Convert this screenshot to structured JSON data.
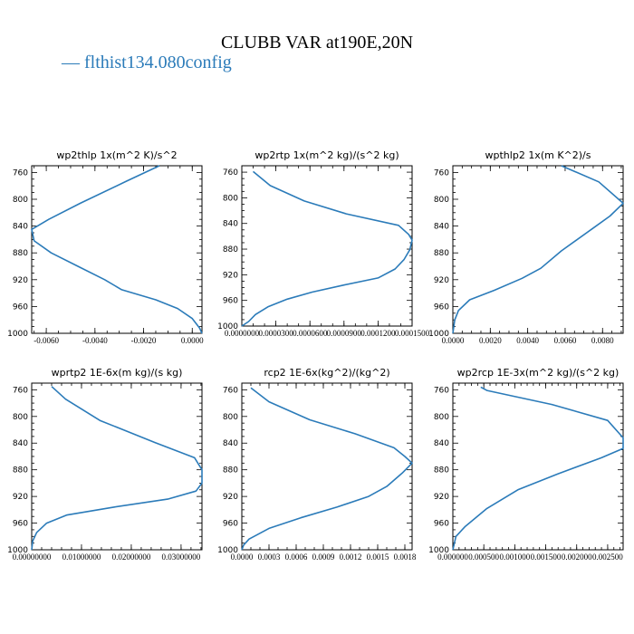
{
  "figure": {
    "title": "CLUBB VAR at190E,20N",
    "legend_label": "— flthist134.080config",
    "line_color": "#2b7bb9"
  },
  "chart_data": [
    {
      "type": "line",
      "title": "wp2thlp  1x(m^2 K)/s^2",
      "ylim": [
        1000,
        750
      ],
      "y_ticks": [
        "760",
        "800",
        "840",
        "880",
        "920",
        "960",
        "1000"
      ],
      "xlim": [
        -0.0066,
        0.0004
      ],
      "x_ticks": [
        {
          "v": -0.006,
          "label": "-0.0060"
        },
        {
          "v": -0.004,
          "label": "-0.0040"
        },
        {
          "v": -0.002,
          "label": "-0.0020"
        },
        {
          "v": 0.0,
          "label": "0.0000"
        }
      ],
      "x_minor_step": 0.0005,
      "series": [
        {
          "values": [
            [
              -0.00135,
              750
            ],
            [
              -0.0027,
              773
            ],
            [
              -0.0046,
              806
            ],
            [
              -0.0059,
              830
            ],
            [
              -0.0066,
              845
            ],
            [
              -0.0065,
              862
            ],
            [
              -0.0058,
              880
            ],
            [
              -0.0047,
              900
            ],
            [
              -0.0036,
              920
            ],
            [
              -0.0029,
              935
            ],
            [
              -0.0015,
              950
            ],
            [
              -0.0006,
              963
            ],
            [
              0.0,
              978
            ],
            [
              0.0003,
              992
            ],
            [
              0.0004,
              1000
            ]
          ]
        }
      ]
    },
    {
      "type": "line",
      "title": "wp2rtp  1x(m^2 kg)/(s^2 kg)",
      "ylim": [
        1000,
        750
      ],
      "y_ticks": [
        "760",
        "800",
        "840",
        "880",
        "920",
        "960",
        "1000"
      ],
      "xlim": [
        0.0,
        0.00015
      ],
      "x_ticks": [
        {
          "v": 0.0,
          "label": "0.0000000"
        },
        {
          "v": 3e-05,
          "label": "0.0000300"
        },
        {
          "v": 6e-05,
          "label": "0.0000600"
        },
        {
          "v": 9e-05,
          "label": "0.0000900"
        },
        {
          "v": 0.00012,
          "label": "0.0001200"
        },
        {
          "v": 0.00015,
          "label": "0.0001500"
        }
      ],
      "x_minor_step": 1e-05,
      "series": [
        {
          "values": [
            [
              1e-05,
              759
            ],
            [
              2.5e-05,
              781
            ],
            [
              5.5e-05,
              805
            ],
            [
              9.2e-05,
              825
            ],
            [
              0.000138,
              843
            ],
            [
              0.000147,
              857
            ],
            [
              0.00015,
              866
            ],
            [
              0.000148,
              881
            ],
            [
              0.000143,
              896
            ],
            [
              0.000135,
              911
            ],
            [
              0.00012,
              925
            ],
            [
              9e-05,
              936
            ],
            [
              6.2e-05,
              947
            ],
            [
              4e-05,
              958
            ],
            [
              2.3e-05,
              970
            ],
            [
              1.2e-05,
              982
            ],
            [
              6e-06,
              993
            ],
            [
              0.0,
              1000
            ]
          ]
        }
      ]
    },
    {
      "type": "line",
      "title": "wpthlp2  1x(m K^2)/s",
      "ylim": [
        1000,
        750
      ],
      "y_ticks": [
        "760",
        "800",
        "840",
        "880",
        "920",
        "960",
        "1000"
      ],
      "xlim": [
        0.0,
        0.0091
      ],
      "x_ticks": [
        {
          "v": 0.0,
          "label": "0.0000"
        },
        {
          "v": 0.002,
          "label": "0.0020"
        },
        {
          "v": 0.004,
          "label": "0.0040"
        },
        {
          "v": 0.006,
          "label": "0.0060"
        },
        {
          "v": 0.008,
          "label": "0.0080"
        }
      ],
      "x_minor_step": 0.0005,
      "series": [
        {
          "values": [
            [
              0.0058,
              750
            ],
            [
              0.0078,
              774
            ],
            [
              0.0091,
              806
            ],
            [
              0.0084,
              825
            ],
            [
              0.0074,
              845
            ],
            [
              0.0058,
              877
            ],
            [
              0.0047,
              903
            ],
            [
              0.0037,
              918
            ],
            [
              0.0022,
              936
            ],
            [
              0.0009,
              950
            ],
            [
              0.0003,
              966
            ],
            [
              0.0001,
              980
            ],
            [
              0.0,
              1000
            ]
          ]
        }
      ]
    },
    {
      "type": "line",
      "title": "wprtp2  1E-6x(m kg)/(s kg)",
      "ylim": [
        1000,
        750
      ],
      "y_ticks": [
        "760",
        "800",
        "840",
        "880",
        "920",
        "960",
        "1000"
      ],
      "xlim": [
        0.0,
        0.0342
      ],
      "x_ticks": [
        {
          "v": 0.0,
          "label": "0.00000000"
        },
        {
          "v": 0.01,
          "label": "0.01000000"
        },
        {
          "v": 0.02,
          "label": "0.02000000"
        },
        {
          "v": 0.03,
          "label": "0.03000000"
        }
      ],
      "x_minor_step": 0.002,
      "series": [
        {
          "values": [
            [
              0.004,
              755
            ],
            [
              0.0068,
              774
            ],
            [
              0.0137,
              806
            ],
            [
              0.0247,
              839
            ],
            [
              0.0327,
              862
            ],
            [
              0.0342,
              880
            ],
            [
              0.0342,
              900
            ],
            [
              0.033,
              912
            ],
            [
              0.0273,
              924
            ],
            [
              0.0165,
              936
            ],
            [
              0.007,
              948
            ],
            [
              0.003,
              960
            ],
            [
              0.001,
              974
            ],
            [
              0.0002,
              987
            ],
            [
              0.0,
              1000
            ]
          ]
        }
      ]
    },
    {
      "type": "line",
      "title": "rcp2  1E-6x(kg^2)/(kg^2)",
      "ylim": [
        1000,
        750
      ],
      "y_ticks": [
        "760",
        "800",
        "840",
        "880",
        "920",
        "960",
        "1000"
      ],
      "xlim": [
        0.0,
        0.00188
      ],
      "x_ticks": [
        {
          "v": 0.0,
          "label": "0.0000"
        },
        {
          "v": 0.0003,
          "label": "0.0003"
        },
        {
          "v": 0.0006,
          "label": "0.0006"
        },
        {
          "v": 0.0009,
          "label": "0.0009"
        },
        {
          "v": 0.0012,
          "label": "0.0012"
        },
        {
          "v": 0.0015,
          "label": "0.0015"
        },
        {
          "v": 0.0018,
          "label": "0.0018"
        }
      ],
      "x_minor_step": 0.0001,
      "series": [
        {
          "values": [
            [
              0.0001,
              757
            ],
            [
              0.0003,
              778
            ],
            [
              0.00075,
              805
            ],
            [
              0.00125,
              826
            ],
            [
              0.00168,
              847
            ],
            [
              0.0018,
              860
            ],
            [
              0.00188,
              870
            ],
            [
              0.00177,
              885
            ],
            [
              0.0016,
              905
            ],
            [
              0.0014,
              920
            ],
            [
              0.00105,
              936
            ],
            [
              0.00065,
              952
            ],
            [
              0.0003,
              968
            ],
            [
              8e-05,
              984
            ],
            [
              2e-05,
              993
            ],
            [
              0.0,
              1000
            ]
          ]
        }
      ]
    },
    {
      "type": "line",
      "title": "wp2rcp  1E-3x(m^2 kg)/(s^2 kg)",
      "ylim": [
        1000,
        750
      ],
      "y_ticks": [
        "760",
        "800",
        "840",
        "880",
        "920",
        "960",
        "1000"
      ],
      "xlim": [
        0.0,
        0.00275
      ],
      "x_ticks": [
        {
          "v": 0.0,
          "label": "0.000000"
        },
        {
          "v": 0.0005,
          "label": "0.000500"
        },
        {
          "v": 0.001,
          "label": "0.001000"
        },
        {
          "v": 0.0015,
          "label": "0.001500"
        },
        {
          "v": 0.002,
          "label": "0.002000"
        },
        {
          "v": 0.0025,
          "label": "0.002500"
        }
      ],
      "x_minor_step": 0.0001,
      "series": [
        {
          "values": [
            [
              0.00045,
              756
            ],
            [
              0.00055,
              761
            ],
            [
              0.0016,
              782
            ],
            [
              0.0025,
              806
            ],
            [
              0.00275,
              832
            ],
            [
              0.00275,
              848
            ],
            [
              0.0024,
              862
            ],
            [
              0.0017,
              886
            ],
            [
              0.00105,
              910
            ],
            [
              0.00055,
              938
            ],
            [
              0.0002,
              965
            ],
            [
              5e-05,
              980
            ],
            [
              0.0,
              1000
            ]
          ]
        }
      ]
    }
  ]
}
